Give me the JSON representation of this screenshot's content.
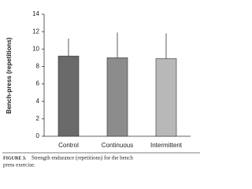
{
  "chart_data": {
    "type": "bar",
    "ylabel": "Bench-press (repetitions)",
    "categories": [
      "Control",
      "Continuous",
      "Intermittent"
    ],
    "values": [
      9.2,
      9.0,
      8.9
    ],
    "errors": [
      2.0,
      2.9,
      2.9
    ],
    "colors": [
      "#6a6a6a",
      "#8c8c8c",
      "#b8b8b8"
    ],
    "ylim": [
      0,
      14
    ],
    "yticks": [
      0,
      2,
      4,
      6,
      8,
      10,
      12,
      14
    ],
    "caption": {
      "label": "FIGURE 3.",
      "lines": [
        "Strength endurance (repetitions) for the bench",
        "press exercise."
      ]
    }
  }
}
